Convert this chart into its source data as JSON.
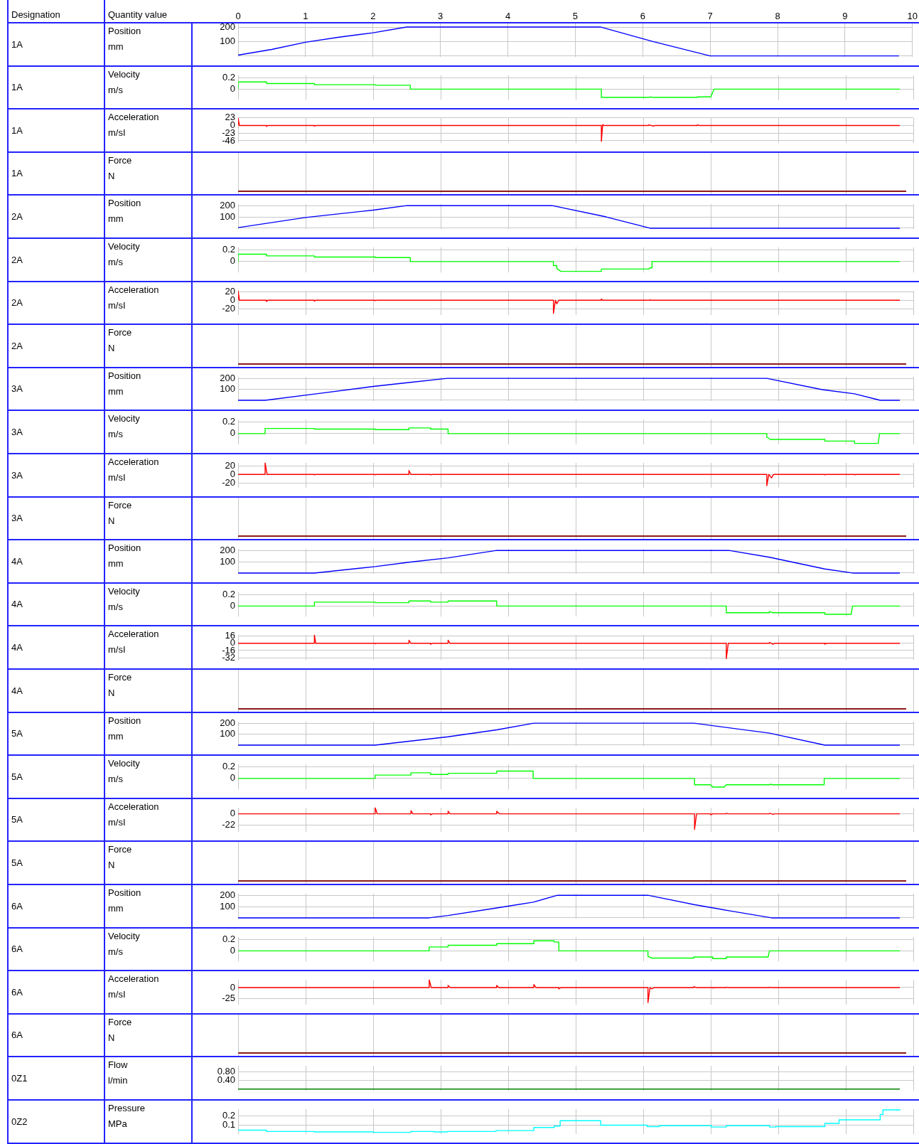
{
  "chart_data": [
    {
      "type": "line",
      "ylabel": "Position",
      "annotations": [
        "Designation",
        "Quantity value",
        "1A",
        "mm"
      ],
      "xlim": [
        0,
        10
      ],
      "xticks": [
        0,
        1,
        2,
        3,
        4,
        5,
        6,
        7,
        8,
        9,
        10
      ],
      "ylim": [
        -8,
        225
      ],
      "yticks": [
        {
          "value": 0,
          "label": null
        },
        100,
        200
      ],
      "grid": true,
      "series": [
        {
          "color": "#0000ff",
          "x": [
            0,
            0.5,
            1,
            1.5,
            2,
            2.5,
            5.38,
            6.15,
            7.0,
            9.8
          ],
          "values": [
            5,
            45,
            95,
            130,
            160,
            200,
            200,
            100,
            0,
            0
          ]
        }
      ]
    },
    {
      "type": "line",
      "ylabel": "Velocity",
      "annotations": [
        "1A",
        "m/s"
      ],
      "xlim": [
        0,
        10
      ],
      "xticks": [
        0,
        1,
        2,
        3,
        4,
        5,
        6,
        7,
        8,
        9,
        10
      ],
      "ylim": [
        -0.19,
        0.25
      ],
      "yticks": [
        0,
        0.2
      ],
      "grid": true,
      "tick_labels": "y",
      "series": [
        {
          "color": "#00ff00",
          "x": [
            0,
            0,
            0.42,
            0.42,
            1.13,
            1.13,
            2.03,
            2.03,
            2.55,
            2.55,
            5.38,
            5.38,
            6.08,
            6.1,
            6.15,
            6.8,
            6.8,
            7.0,
            7.05,
            9.8
          ],
          "values": [
            0,
            0.13,
            0.13,
            0.1,
            0.1,
            0.08,
            0.08,
            0.07,
            0.07,
            0,
            0,
            -0.15,
            -0.15,
            -0.14,
            -0.15,
            -0.15,
            -0.14,
            -0.14,
            0,
            0
          ]
        }
      ]
    },
    {
      "type": "line",
      "ylabel": "Acceleration",
      "annotations": [
        "1A",
        "m/sI"
      ],
      "xlim": [
        0,
        10
      ],
      "xticks": [
        0,
        1,
        2,
        3,
        4,
        5,
        6,
        7,
        8,
        9,
        10
      ],
      "ylim": [
        -53,
        23
      ],
      "yticks": [
        23,
        0,
        -23,
        -46
      ],
      "grid": true,
      "tick_labels": "y",
      "series": [
        {
          "color": "#ff0000",
          "x": [
            0,
            0,
            0.02,
            0.42,
            0.42,
            0.44,
            1.13,
            1.13,
            1.15,
            5.38,
            5.38,
            5.4,
            5.42,
            6.08,
            6.08,
            6.12,
            6.15,
            6.17,
            6.8,
            6.8,
            6.83,
            9.8
          ],
          "values": [
            0,
            23,
            0,
            0,
            -3,
            0,
            0,
            -2,
            0,
            0,
            -48,
            3,
            0,
            0,
            2,
            0,
            -2,
            0,
            0,
            2,
            0,
            0
          ]
        }
      ]
    },
    {
      "type": "other",
      "ylabel": "Force",
      "annotations": [
        "1A",
        "N"
      ]
    },
    {
      "type": "line",
      "ylabel": "Position",
      "annotations": [
        "2A",
        "mm"
      ],
      "xlim": [
        0,
        10
      ],
      "xticks": [
        0,
        1,
        2,
        3,
        4,
        5,
        6,
        7,
        8,
        9,
        10
      ],
      "ylim": [
        -8,
        215
      ],
      "yticks": [
        {
          "value": 0,
          "label": null
        },
        100,
        200
      ],
      "grid": true,
      "tick_labels": "y",
      "series": [
        {
          "color": "#0000ff",
          "x": [
            0,
            1,
            2,
            2.5,
            4.65,
            5.45,
            6.1,
            9.8
          ],
          "values": [
            5,
            95,
            160,
            200,
            200,
            100,
            0,
            0
          ]
        }
      ]
    },
    {
      "type": "line",
      "ylabel": "Velocity",
      "annotations": [
        "2A",
        "m/s"
      ],
      "xlim": [
        0,
        10
      ],
      "xticks": [
        0,
        1,
        2,
        3,
        4,
        5,
        6,
        7,
        8,
        9,
        10
      ],
      "ylim": [
        -0.19,
        0.25
      ],
      "yticks": [
        0,
        0.2
      ],
      "grid": true,
      "tick_labels": "y",
      "series": [
        {
          "color": "#00ff00",
          "x": [
            0,
            0,
            0.42,
            0.42,
            1.13,
            1.13,
            2.03,
            2.03,
            2.55,
            2.55,
            4.67,
            4.67,
            4.72,
            4.72,
            4.78,
            5.38,
            5.38,
            6.08,
            6.1,
            6.13,
            6.13,
            9.8
          ],
          "values": [
            0,
            0.13,
            0.13,
            0.1,
            0.1,
            0.08,
            0.08,
            0.07,
            0.07,
            0,
            0,
            -0.07,
            -0.07,
            -0.12,
            -0.17,
            -0.17,
            -0.13,
            -0.13,
            -0.11,
            -0.11,
            0,
            0
          ]
        }
      ]
    },
    {
      "type": "line",
      "ylabel": "Acceleration",
      "annotations": [
        "2A",
        "m/sI"
      ],
      "xlim": [
        0,
        10
      ],
      "xticks": [
        0,
        1,
        2,
        3,
        4,
        5,
        6,
        7,
        8,
        9,
        10
      ],
      "ylim": [
        -34,
        22
      ],
      "yticks": [
        20,
        0,
        -20
      ],
      "grid": true,
      "tick_labels": "y",
      "series": [
        {
          "color": "#ff0000",
          "x": [
            0,
            0,
            0.02,
            0.42,
            0.42,
            0.44,
            1.13,
            1.13,
            1.15,
            2.03,
            2.03,
            2.05,
            4.67,
            4.67,
            4.7,
            4.72,
            4.75,
            5.38,
            5.38,
            5.4,
            6.1,
            6.1,
            6.13,
            9.8
          ],
          "values": [
            0,
            22,
            0,
            0,
            -3,
            0,
            0,
            -2,
            0,
            0,
            -1,
            0,
            0,
            -30,
            0,
            -8,
            0,
            0,
            3,
            0,
            0,
            1,
            0,
            0
          ]
        }
      ]
    },
    {
      "type": "other",
      "ylabel": "Force",
      "annotations": [
        "2A",
        "N"
      ]
    },
    {
      "type": "line",
      "ylabel": "Position",
      "annotations": [
        "3A",
        "mm"
      ],
      "xlim": [
        0,
        10
      ],
      "xticks": [
        0,
        1,
        2,
        3,
        4,
        5,
        6,
        7,
        8,
        9,
        10
      ],
      "ylim": [
        -8,
        215
      ],
      "yticks": [
        {
          "value": 0,
          "label": null
        },
        100,
        200
      ],
      "grid": true,
      "tick_labels": "y",
      "series": [
        {
          "color": "#0000ff",
          "x": [
            0,
            0.4,
            1.2,
            2,
            2.53,
            3.1,
            7.83,
            8.65,
            9.13,
            9.51,
            9.8
          ],
          "values": [
            0,
            0,
            62,
            126,
            162,
            200,
            200,
            97,
            59,
            0,
            0
          ]
        }
      ]
    },
    {
      "type": "line",
      "ylabel": "Velocity",
      "annotations": [
        "3A",
        "m/s"
      ],
      "xlim": [
        0,
        10
      ],
      "xticks": [
        0,
        1,
        2,
        3,
        4,
        5,
        6,
        7,
        8,
        9,
        10
      ],
      "ylim": [
        -0.19,
        0.25
      ],
      "yticks": [
        0,
        0.2
      ],
      "grid": true,
      "tick_labels": "y",
      "series": [
        {
          "color": "#00ff00",
          "x": [
            0,
            0.4,
            0.4,
            1.13,
            1.13,
            2.03,
            2.03,
            2.53,
            2.53,
            2.85,
            2.85,
            3.11,
            3.11,
            7.83,
            7.83,
            7.88,
            8.69,
            8.69,
            9.13,
            9.13,
            9.48,
            9.5,
            9.8
          ],
          "values": [
            0,
            0,
            0.09,
            0.09,
            0.08,
            0.08,
            0.07,
            0.07,
            0.1,
            0.1,
            0.08,
            0.08,
            0,
            0,
            -0.06,
            -0.1,
            -0.1,
            -0.13,
            -0.13,
            -0.17,
            -0.17,
            0,
            0
          ]
        }
      ]
    },
    {
      "type": "line",
      "ylabel": "Acceleration",
      "annotations": [
        "3A",
        "m/sI"
      ],
      "xlim": [
        0,
        10
      ],
      "xticks": [
        0,
        1,
        2,
        3,
        4,
        5,
        6,
        7,
        8,
        9,
        10
      ],
      "ylim": [
        -31,
        27
      ],
      "yticks": [
        20,
        0,
        -20
      ],
      "grid": true,
      "tick_labels": "y",
      "series": [
        {
          "color": "#ff0000",
          "x": [
            0,
            0.4,
            0.4,
            0.43,
            1.13,
            1.13,
            1.15,
            2.03,
            2.03,
            2.05,
            2.53,
            2.53,
            2.56,
            2.85,
            2.85,
            2.88,
            7.83,
            7.83,
            7.86,
            7.9,
            7.93,
            8.69,
            8.69,
            8.71,
            9.13,
            9.13,
            9.15,
            9.8
          ],
          "values": [
            0,
            0,
            27,
            0,
            0,
            -1,
            0,
            0,
            -1,
            0,
            0,
            9,
            0,
            0,
            -1,
            0,
            0,
            -26,
            0,
            -8,
            0,
            0,
            -1,
            0,
            0,
            -1,
            0,
            0
          ]
        }
      ]
    },
    {
      "type": "other",
      "ylabel": "Force",
      "annotations": [
        "3A",
        "N"
      ]
    },
    {
      "type": "line",
      "ylabel": "Position",
      "annotations": [
        "4A",
        "mm"
      ],
      "xlim": [
        0,
        10
      ],
      "xticks": [
        0,
        1,
        2,
        3,
        4,
        5,
        6,
        7,
        8,
        9,
        10
      ],
      "ylim": [
        -8,
        215
      ],
      "yticks": [
        {
          "value": 0,
          "label": null
        },
        100,
        200
      ],
      "grid": true,
      "tick_labels": "y",
      "series": [
        {
          "color": "#0000ff",
          "x": [
            0,
            1.13,
            2.03,
            2.53,
            3.11,
            3.83,
            7.27,
            7.87,
            8.69,
            9.1,
            9.8
          ],
          "values": [
            0,
            0,
            57,
            96,
            134,
            200,
            200,
            140,
            36,
            0,
            0
          ]
        }
      ]
    },
    {
      "type": "line",
      "ylabel": "Velocity",
      "annotations": [
        "4A",
        "m/s"
      ],
      "xlim": [
        0,
        10
      ],
      "xticks": [
        0,
        1,
        2,
        3,
        4,
        5,
        6,
        7,
        8,
        9,
        10
      ],
      "ylim": [
        -0.19,
        0.25
      ],
      "yticks": [
        0,
        0.2
      ],
      "grid": true,
      "tick_labels": "y",
      "series": [
        {
          "color": "#00ff00",
          "x": [
            0,
            1.13,
            1.13,
            2.03,
            2.03,
            2.53,
            2.53,
            2.85,
            2.85,
            3.11,
            3.11,
            3.83,
            3.83,
            7.23,
            7.23,
            7.87,
            7.87,
            7.92,
            8.69,
            8.69,
            9.08,
            9.1,
            9.8
          ],
          "values": [
            0,
            0,
            0.07,
            0.07,
            0.06,
            0.06,
            0.09,
            0.09,
            0.07,
            0.07,
            0.09,
            0.09,
            0,
            0,
            -0.12,
            -0.12,
            -0.1,
            -0.12,
            -0.12,
            -0.15,
            -0.15,
            0,
            0
          ]
        }
      ]
    },
    {
      "type": "line",
      "ylabel": "Acceleration",
      "annotations": [
        "4A",
        "m/sI"
      ],
      "xlim": [
        0,
        10
      ],
      "xticks": [
        0,
        1,
        2,
        3,
        4,
        5,
        6,
        7,
        8,
        9,
        10
      ],
      "ylim": [
        -37,
        19
      ],
      "yticks": [
        16,
        0,
        -16,
        -32
      ],
      "grid": true,
      "tick_labels": "y",
      "series": [
        {
          "color": "#ff0000",
          "x": [
            0,
            1.13,
            1.13,
            1.15,
            2.03,
            2.03,
            2.05,
            2.53,
            2.53,
            2.56,
            2.85,
            2.85,
            2.88,
            3.11,
            3.11,
            3.14,
            7.23,
            7.23,
            7.26,
            7.87,
            7.87,
            7.9,
            7.92,
            7.95,
            8.69,
            8.69,
            8.71,
            9.8
          ],
          "values": [
            0,
            0,
            19,
            0,
            0,
            -1,
            0,
            0,
            7,
            0,
            0,
            -2,
            0,
            0,
            7,
            0,
            0,
            -34,
            0,
            0,
            2,
            0,
            -2,
            0,
            0,
            -2,
            0,
            0
          ]
        }
      ]
    },
    {
      "type": "other",
      "ylabel": "Force",
      "annotations": [
        "4A",
        "N"
      ]
    },
    {
      "type": "line",
      "ylabel": "Position",
      "annotations": [
        "5A",
        "mm"
      ],
      "xlim": [
        0,
        10
      ],
      "xticks": [
        0,
        1,
        2,
        3,
        4,
        5,
        6,
        7,
        8,
        9,
        10
      ],
      "ylim": [
        -8,
        215
      ],
      "yticks": [
        {
          "value": 0,
          "label": null
        },
        100,
        200
      ],
      "grid": true,
      "tick_labels": "y",
      "series": [
        {
          "color": "#0000ff",
          "x": [
            0,
            2.03,
            3.11,
            3.83,
            4.38,
            6.75,
            7.87,
            8.69,
            9.8
          ],
          "values": [
            0,
            0,
            76,
            139,
            200,
            200,
            109,
            0,
            0
          ]
        }
      ]
    },
    {
      "type": "line",
      "ylabel": "Velocity",
      "annotations": [
        "5A",
        "m/s"
      ],
      "xlim": [
        0,
        10
      ],
      "xticks": [
        0,
        1,
        2,
        3,
        4,
        5,
        6,
        7,
        8,
        9,
        10
      ],
      "ylim": [
        -0.19,
        0.25
      ],
      "yticks": [
        0,
        0.2
      ],
      "grid": true,
      "tick_labels": "y",
      "series": [
        {
          "color": "#00ff00",
          "x": [
            0,
            2.03,
            2.03,
            2.56,
            2.56,
            2.85,
            2.85,
            3.11,
            3.11,
            3.83,
            3.83,
            4.37,
            4.37,
            6.76,
            6.76,
            7.0,
            7.03,
            7.2,
            7.23,
            7.87,
            7.88,
            7.92,
            8.68,
            8.68,
            9.8
          ],
          "values": [
            0,
            0,
            0.06,
            0.06,
            0.1,
            0.1,
            0.07,
            0.07,
            0.09,
            0.09,
            0.13,
            0.13,
            0,
            0,
            -0.11,
            -0.11,
            -0.15,
            -0.15,
            -0.11,
            -0.11,
            -0.1,
            -0.11,
            -0.11,
            0,
            0
          ]
        }
      ]
    },
    {
      "type": "line",
      "ylabel": "Acceleration",
      "annotations": [
        "5A",
        "m/sI"
      ],
      "xlim": [
        0,
        10
      ],
      "xticks": [
        0,
        1,
        2,
        3,
        4,
        5,
        6,
        7,
        8,
        9,
        10
      ],
      "ylim": [
        -35,
        12
      ],
      "yticks": [
        0,
        -22
      ],
      "grid": true,
      "tick_labels": "y",
      "series": [
        {
          "color": "#ff0000",
          "x": [
            0,
            2.03,
            2.03,
            2.06,
            2.56,
            2.56,
            2.59,
            2.85,
            2.85,
            2.88,
            3.11,
            3.11,
            3.14,
            3.83,
            3.83,
            3.87,
            6.76,
            6.76,
            6.79,
            7.0,
            7.0,
            7.03,
            7.23,
            7.23,
            7.26,
            7.87,
            7.87,
            7.9,
            7.92,
            7.95,
            9.8
          ],
          "values": [
            0,
            0,
            12,
            0,
            0,
            6,
            0,
            0,
            -2,
            0,
            0,
            5,
            0,
            0,
            5,
            0,
            0,
            -30,
            0,
            0,
            -2,
            0,
            0,
            1,
            0,
            0,
            1,
            0,
            -1,
            0,
            0
          ]
        }
      ]
    },
    {
      "type": "other",
      "ylabel": "Force",
      "annotations": [
        "5A",
        "N"
      ]
    },
    {
      "type": "line",
      "ylabel": "Position",
      "annotations": [
        "6A",
        "mm"
      ],
      "xlim": [
        0,
        10
      ],
      "xticks": [
        0,
        1,
        2,
        3,
        4,
        5,
        6,
        7,
        8,
        9,
        10
      ],
      "ylim": [
        -8,
        215
      ],
      "yticks": [
        {
          "value": 0,
          "label": null
        },
        100,
        200
      ],
      "grid": true,
      "tick_labels": "y",
      "series": [
        {
          "color": "#0000ff",
          "x": [
            0,
            2.83,
            3.11,
            3.83,
            4.37,
            4.73,
            6.07,
            6.75,
            7.3,
            7.9,
            9.8
          ],
          "values": [
            0,
            0,
            21,
            88,
            139,
            200,
            200,
            118,
            60,
            0,
            0
          ]
        }
      ]
    },
    {
      "type": "line",
      "ylabel": "Velocity",
      "annotations": [
        "6A",
        "m/s"
      ],
      "xlim": [
        0,
        10
      ],
      "xticks": [
        0,
        1,
        2,
        3,
        4,
        5,
        6,
        7,
        8,
        9,
        10
      ],
      "ylim": [
        -0.19,
        0.25
      ],
      "yticks": [
        0,
        0.2
      ],
      "grid": true,
      "tick_labels": "y",
      "series": [
        {
          "color": "#00ff00",
          "x": [
            0,
            2.83,
            2.83,
            3.11,
            3.11,
            3.83,
            3.83,
            4.38,
            4.38,
            4.68,
            4.68,
            4.75,
            4.75,
            6.07,
            6.07,
            6.13,
            6.75,
            6.75,
            7.03,
            7.03,
            7.23,
            7.23,
            7.85,
            7.87,
            9.8
          ],
          "values": [
            0,
            0,
            0.07,
            0.07,
            0.1,
            0.1,
            0.13,
            0.13,
            0.18,
            0.18,
            0.16,
            0.16,
            0,
            0,
            -0.1,
            -0.13,
            -0.13,
            -0.11,
            -0.11,
            -0.14,
            -0.14,
            -0.11,
            -0.11,
            0,
            0
          ]
        }
      ]
    },
    {
      "type": "line",
      "ylabel": "Acceleration",
      "annotations": [
        "6A",
        "m/sI"
      ],
      "xlim": [
        0,
        10
      ],
      "xticks": [
        0,
        1,
        2,
        3,
        4,
        5,
        6,
        7,
        8,
        9,
        10
      ],
      "ylim": [
        -39,
        18
      ],
      "yticks": [
        0,
        -25
      ],
      "grid": true,
      "tick_labels": "y",
      "series": [
        {
          "color": "#ff0000",
          "x": [
            0,
            2.83,
            2.83,
            2.86,
            3.11,
            3.11,
            3.14,
            3.83,
            3.83,
            3.86,
            4.38,
            4.38,
            4.41,
            4.75,
            4.75,
            4.78,
            6.07,
            6.07,
            6.1,
            6.13,
            6.16,
            6.75,
            6.75,
            6.78,
            7.03,
            7.03,
            7.06,
            7.23,
            7.23,
            7.26,
            7.87,
            7.87,
            7.9,
            9.8
          ],
          "values": [
            0,
            0,
            18,
            0,
            0,
            5,
            0,
            0,
            5,
            0,
            0,
            7,
            0,
            0,
            -3,
            0,
            0,
            -34,
            0,
            -3,
            0,
            0,
            2,
            0,
            0,
            -1,
            0,
            0,
            1,
            0,
            0,
            1,
            0,
            0
          ]
        }
      ]
    },
    {
      "type": "other",
      "ylabel": "Force",
      "annotations": [
        "6A",
        "N"
      ]
    },
    {
      "type": "line",
      "ylabel": "Flow",
      "annotations": [
        "0Z1",
        "l/min"
      ],
      "xlim": [
        0,
        10
      ],
      "xticks": [
        0,
        1,
        2,
        3,
        4,
        5,
        6,
        7,
        8,
        9,
        10
      ],
      "ylim": [
        -0.08,
        1.08
      ],
      "yticks": [
        {
          "value": 0.8,
          "label": "0.80"
        },
        {
          "value": 0.4,
          "label": "0.40"
        }
      ],
      "grid": true,
      "tick_labels": "y",
      "series": [
        {
          "color": "#008000",
          "x": [
            0,
            9.8
          ],
          "values": [
            0,
            0
          ]
        }
      ]
    },
    {
      "type": "line",
      "ylabel": "Pressure",
      "annotations": [
        "0Z2",
        "MPa"
      ],
      "xlim": [
        0,
        10
      ],
      "xticks": [
        0,
        1,
        2,
        3,
        4,
        5,
        6,
        7,
        8,
        9,
        10
      ],
      "ylim": [
        0,
        0.28
      ],
      "yticks": [
        0.2,
        0.1
      ],
      "grid": true,
      "tick_labels": "y",
      "series": [
        {
          "color": "#00ffff",
          "x": [
            0,
            0.42,
            0.42,
            1.13,
            1.13,
            2.01,
            2.01,
            2.56,
            2.56,
            2.9,
            2.9,
            3.1,
            3.1,
            3.82,
            3.82,
            4.38,
            4.38,
            4.68,
            4.68,
            4.77,
            4.77,
            5.37,
            5.37,
            6.06,
            6.06,
            6.24,
            6.24,
            7.01,
            7.01,
            7.23,
            7.23,
            7.87,
            7.87,
            7.96,
            7.96,
            8.69,
            8.69,
            8.9,
            8.9,
            9.51,
            9.51,
            9.55,
            9.55,
            9.81
          ],
          "values": [
            0.045,
            0.045,
            0.03,
            0.03,
            0.025,
            0.025,
            0.02,
            0.02,
            0.03,
            0.03,
            0.025,
            0.025,
            0.03,
            0.03,
            0.04,
            0.04,
            0.075,
            0.075,
            0.09,
            0.09,
            0.15,
            0.15,
            0.1,
            0.1,
            0.085,
            0.085,
            0.095,
            0.095,
            0.08,
            0.08,
            0.095,
            0.095,
            0.08,
            0.08,
            0.085,
            0.085,
            0.12,
            0.12,
            0.16,
            0.16,
            0.22,
            0.22,
            0.27,
            0.27
          ]
        }
      ]
    }
  ]
}
